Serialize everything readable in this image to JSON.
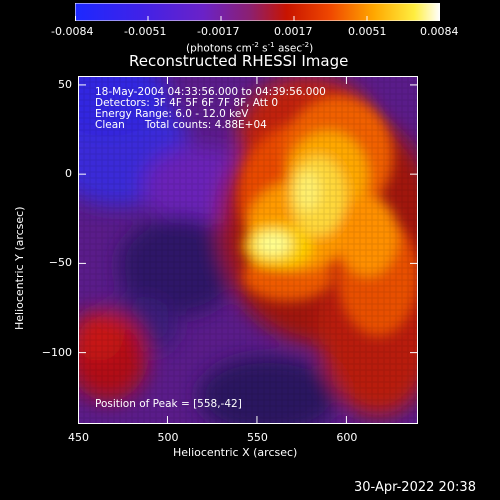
{
  "colorbar": {
    "ticks": [
      "-0.0084",
      "-0.0051",
      "-0.0017",
      "0.0017",
      "0.0051",
      "0.0084"
    ],
    "unit_label": "(photons cm",
    "unit_exp1": "-2",
    "unit_mid": " s",
    "unit_exp2": "-1",
    "unit_end": " asec",
    "unit_exp3": "-2",
    "unit_close": ")"
  },
  "chart_data": {
    "type": "heatmap",
    "title": "Reconstructed RHESSI Image",
    "xlabel": "Heliocentric X (arcsec)",
    "ylabel": "Heliocentric Y (arcsec)",
    "xlim": [
      450,
      640
    ],
    "ylim": [
      -140,
      55
    ],
    "x_ticks": [
      450,
      500,
      550,
      600
    ],
    "y_ticks": [
      50,
      0,
      -50,
      -100
    ],
    "x_tick_labels": [
      "450",
      "500",
      "550",
      "600"
    ],
    "y_tick_labels": [
      "50",
      "0",
      "−50",
      "−100"
    ],
    "zlim": [
      -0.0084,
      0.0084
    ],
    "colormap": "blue-purple-red-yellow-white",
    "peak": [
      558,
      -42
    ],
    "annotations": [
      "18-May-2004 04:33:56.000 to 04:39:56.000",
      "Detectors: 3F 4F 5F 6F 7F 8F, Att 0",
      "Energy Range: 6.0 - 12.0 keV",
      "Clean      Total counts: 4.88E+04"
    ],
    "peak_text": "Position of Peak = [558,-42]"
  },
  "footer_date": "30-Apr-2022 20:38"
}
